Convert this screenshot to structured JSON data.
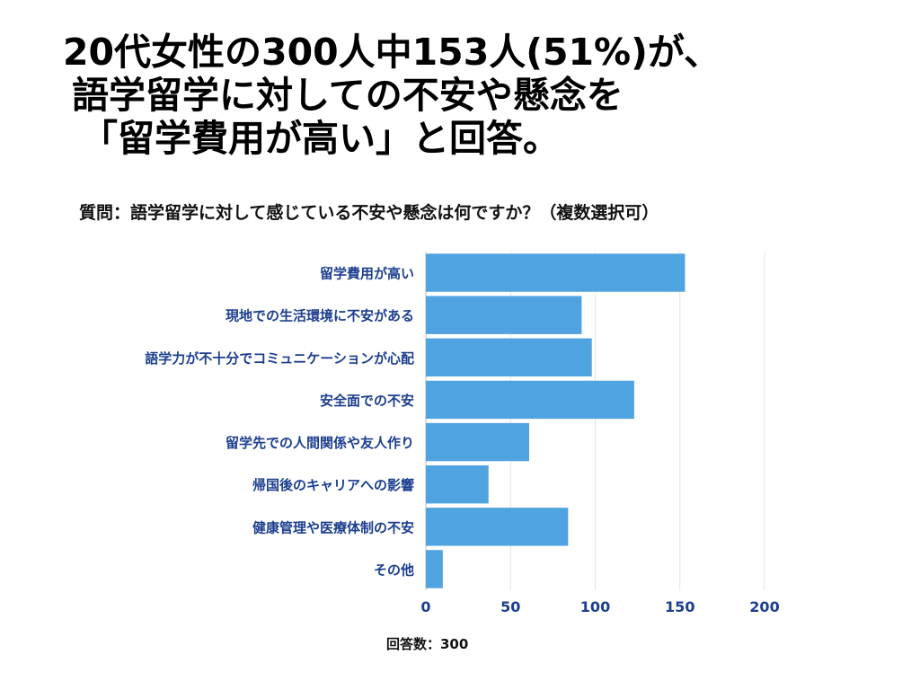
{
  "headline": {
    "line1": "20代女性の300人中153人(51%)が、",
    "line2": "語学留学に対しての不安や懸念を",
    "line3": "「留学費用が高い」と回答。"
  },
  "question": "質問：語学留学に対して感じている不安や懸念は何ですか？（複数選択可）",
  "footnote": "回答数：300",
  "colors": {
    "bar": "#4fa3e0",
    "label": "#1c3f8f",
    "grid": "#e4e4e4"
  },
  "chart_data": {
    "type": "bar",
    "orientation": "horizontal",
    "categories": [
      "留学費用が高い",
      "現地での生活環境に不安がある",
      "語学力が不十分でコミュニケーションが心配",
      "安全面での不安",
      "留学先での人間関係や友人作り",
      "帰国後のキャリアへの影響",
      "健康管理や医療体制の不安",
      "その他"
    ],
    "values": [
      153,
      92,
      98,
      123,
      61,
      37,
      84,
      10
    ],
    "xlim": [
      0,
      200
    ],
    "xticks": [
      "0",
      "50",
      "100",
      "150",
      "200"
    ],
    "xtick_values": [
      0,
      50,
      100,
      150,
      200
    ],
    "grid": true
  }
}
